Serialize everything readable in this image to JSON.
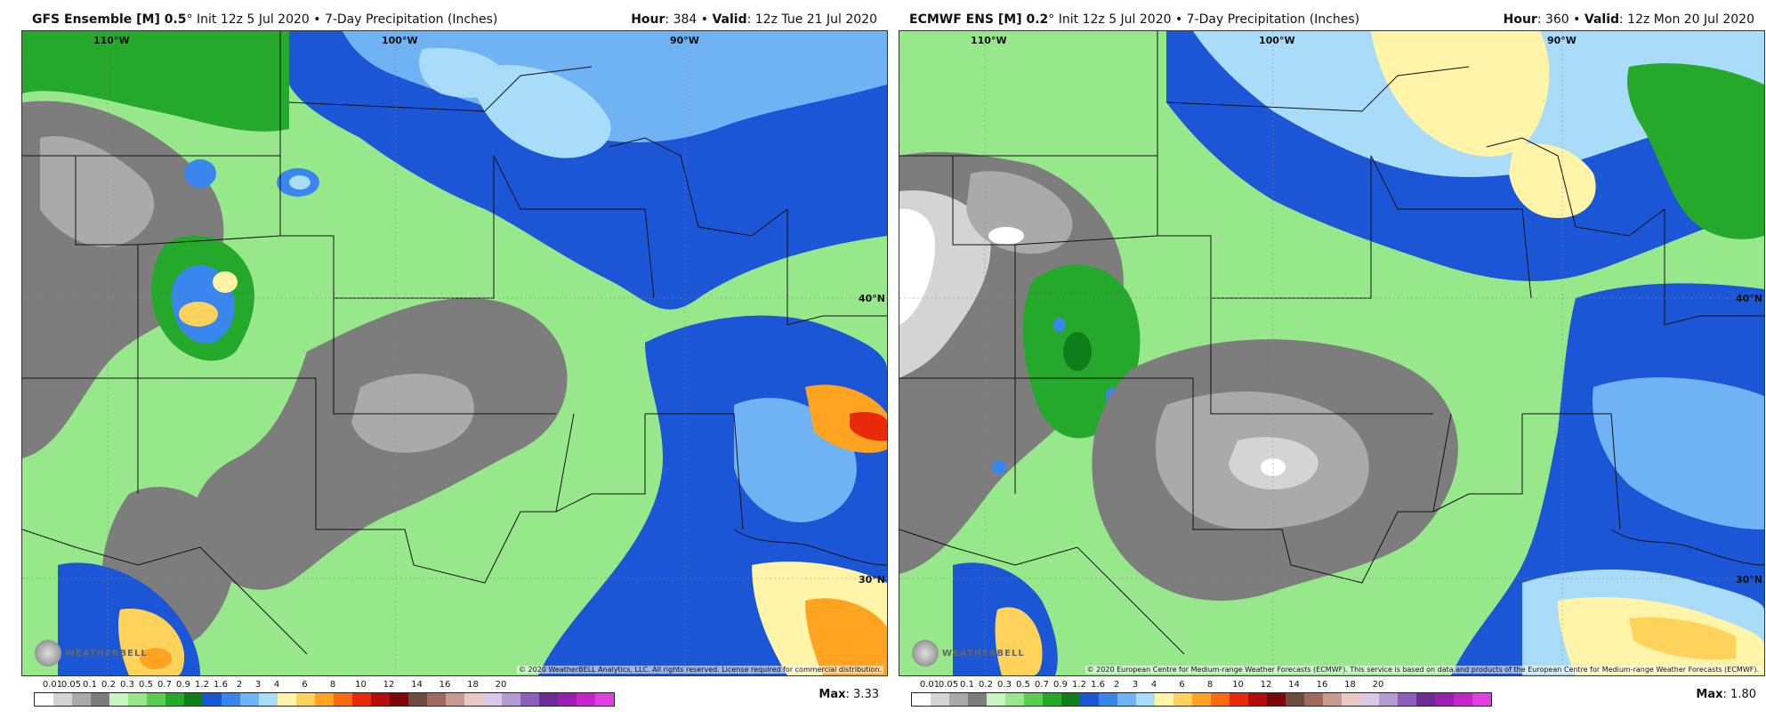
{
  "panels": [
    {
      "model_label": "GFS Ensemble [M] 0.5",
      "init_text": "° Init 12z 5 Jul 2020 • 7-Day Precipitation (Inches)",
      "hour_label": "Hour",
      "hour_value": ": 384 • ",
      "valid_label": "Valid",
      "valid_value": ": 12z Tue 21 Jul 2020",
      "max_label": "Max",
      "max_value": ": 3.33",
      "credit": "© 2020 WeatherBELL Analytics, LLC. All rights reserved. License required for commercial distribution.",
      "logo_text": "WEATHERBELL",
      "lon_labels": [
        "110°W",
        "100°W",
        "90°W"
      ],
      "lat_labels": [
        "40°N",
        "30°N"
      ]
    },
    {
      "model_label": "ECMWF ENS [M] 0.2",
      "init_text": "° Init 12z 5 Jul 2020 • 7-Day Precipitation (Inches)",
      "hour_label": "Hour",
      "hour_value": ": 360 • ",
      "valid_label": "Valid",
      "valid_value": ": 12z Mon 20 Jul 2020",
      "max_label": "Max",
      "max_value": ": 1.80",
      "credit": "© 2020 European Centre for Medium-range Weather Forecasts (ECMWF). This service is based on data and products of the European Centre for Medium-range Weather Forecasts (ECMWF).",
      "logo_text": "WEATHERBELL",
      "lon_labels": [
        "110°W",
        "100°W",
        "90°W"
      ],
      "lat_labels": [
        "40°N",
        "30°N"
      ]
    }
  ],
  "scale": {
    "ticks": [
      "0.01",
      "0.05",
      "0.1",
      "0.2",
      "0.3",
      "0.5",
      "0.7",
      "0.9",
      "1.2",
      "1.6",
      "2",
      "3",
      "4",
      "6",
      "8",
      "10",
      "12",
      "14",
      "16",
      "18",
      "20"
    ],
    "colors": [
      "#ffffff",
      "#d4d4d4",
      "#aaaaaa",
      "#7d7d7d",
      "#c8f5c0",
      "#96e88a",
      "#5ccd52",
      "#25a92b",
      "#0f7f1c",
      "#1b56d6",
      "#3a86ef",
      "#6fb3f5",
      "#a9dcf8",
      "#fff4a8",
      "#ffd35a",
      "#ffa320",
      "#ff6a10",
      "#e82a0a",
      "#b30d0d",
      "#7a0808",
      "#6e4b42",
      "#a06a5e",
      "#c99a90",
      "#e8c8c2",
      "#d9c8e8",
      "#b59ad3",
      "#8d5fb8",
      "#6b2c96",
      "#9a1fae",
      "#c424c9",
      "#e040e0"
    ]
  }
}
